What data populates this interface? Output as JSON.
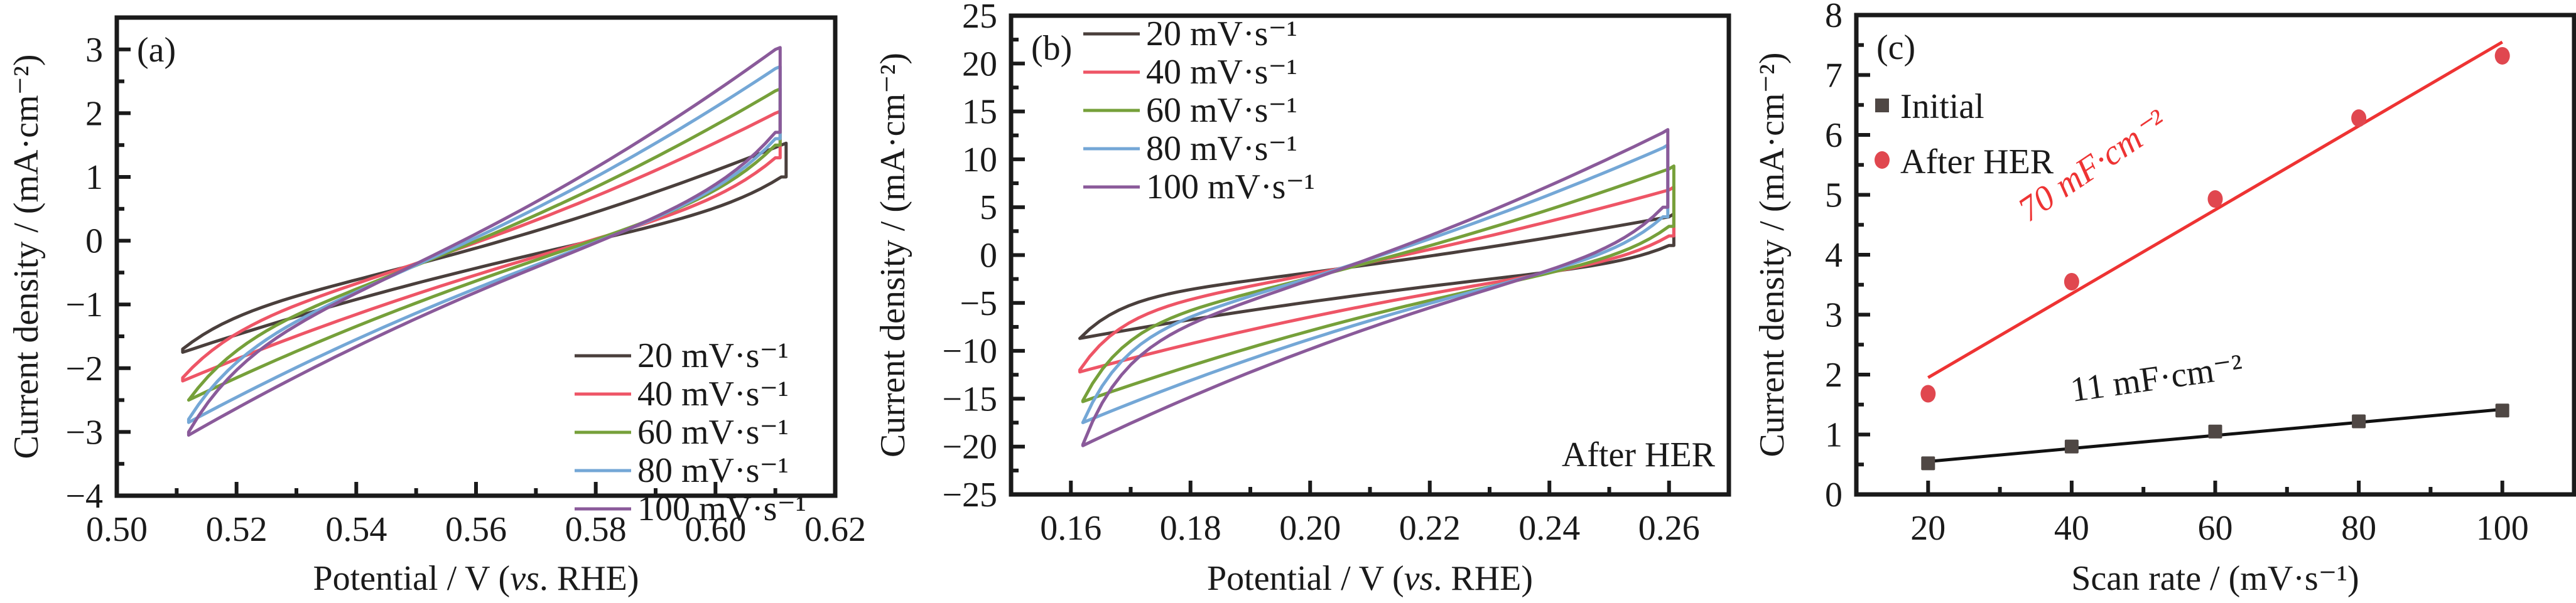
{
  "figure": {
    "colors": {
      "20": "#4a3f3c",
      "40": "#ee5566",
      "60": "#76a03a",
      "80": "#74a7d6",
      "100": "#8a5a9a",
      "initial": "#4f4744",
      "after_her": "#e0474f",
      "fit_red": "#ee3333",
      "fit_black": "#111111",
      "annot_red": "#ee3333"
    }
  },
  "chart_data": [
    {
      "id": "a",
      "type": "line",
      "panel_label": "(a)",
      "title": "",
      "xlabel": "Potential / V (vs. RHE)",
      "xlabel_parts": [
        "Potential / V (",
        "vs",
        ". RHE)"
      ],
      "ylabel": "Current density / (mA·cm⁻²)",
      "xlim": [
        0.5,
        0.62
      ],
      "ylim": [
        -4,
        3.5
      ],
      "xticks": [
        0.5,
        0.52,
        0.54,
        0.56,
        0.58,
        0.6,
        0.62
      ],
      "xtick_labels": [
        "0.50",
        "0.52",
        "0.54",
        "0.56",
        "0.58",
        "0.60",
        "0.62"
      ],
      "yticks": [
        -4,
        -3,
        -2,
        -1,
        0,
        1,
        2,
        3
      ],
      "ytick_labels": [
        "−4",
        "−3",
        "−2",
        "−1",
        "0",
        "1",
        "2",
        "3"
      ],
      "legend_position": "bottom-right",
      "annotation": "",
      "series": [
        {
          "name": "20 mV·s⁻¹",
          "key": "20",
          "x_min": 0.511,
          "x_max": 0.611,
          "upper_left": -1.7,
          "upper_right": 1.5,
          "lower_left": -1.75,
          "lower_right": 1.0,
          "cross_low": -0.6,
          "cross_high": 0.15
        },
        {
          "name": "40 mV·s⁻¹",
          "key": "40",
          "x_min": 0.511,
          "x_max": 0.61,
          "upper_left": -2.15,
          "upper_right": 2.0,
          "lower_left": -2.2,
          "lower_right": 1.3,
          "cross_low": -0.6,
          "cross_high": 0.15
        },
        {
          "name": "60 mV·s⁻¹",
          "key": "60",
          "x_min": 0.512,
          "x_max": 0.61,
          "upper_left": -2.5,
          "upper_right": 2.35,
          "lower_left": -2.5,
          "lower_right": 1.5,
          "cross_low": -0.6,
          "cross_high": 0.15
        },
        {
          "name": "80 mV·s⁻¹",
          "key": "80",
          "x_min": 0.512,
          "x_max": 0.61,
          "upper_left": -2.8,
          "upper_right": 2.7,
          "lower_left": -2.85,
          "lower_right": 1.6,
          "cross_low": -0.6,
          "cross_high": 0.15
        },
        {
          "name": "100 mV·s⁻¹",
          "key": "100",
          "x_min": 0.512,
          "x_max": 0.61,
          "upper_left": -3.0,
          "upper_right": 3.0,
          "lower_left": -3.05,
          "lower_right": 1.7,
          "cross_low": -0.6,
          "cross_high": 0.15
        }
      ]
    },
    {
      "id": "b",
      "type": "line",
      "panel_label": "(b)",
      "title": "",
      "xlabel": "Potential / V (vs. RHE)",
      "xlabel_parts": [
        "Potential / V (",
        "vs",
        ". RHE)"
      ],
      "ylabel": "Current density / (mA·cm⁻²)",
      "xlim": [
        0.15,
        0.27
      ],
      "ylim": [
        -25,
        25
      ],
      "xticks": [
        0.16,
        0.18,
        0.2,
        0.22,
        0.24,
        0.26
      ],
      "xtick_labels": [
        "0.16",
        "0.18",
        "0.20",
        "0.22",
        "0.24",
        "0.26"
      ],
      "yticks": [
        -25,
        -20,
        -15,
        -10,
        -5,
        0,
        5,
        10,
        15,
        20,
        25
      ],
      "ytick_labels": [
        "−25",
        "−20",
        "−15",
        "−10",
        "−5",
        "0",
        "5",
        "10",
        "15",
        "20",
        "25"
      ],
      "legend_position": "top-left",
      "annotation": "After HER",
      "series": [
        {
          "name": "20 mV·s⁻¹",
          "key": "20",
          "x_min": 0.1615,
          "x_max": 0.26,
          "upper_left": -8.7,
          "upper_right": 4.0,
          "lower_left": -8.7,
          "lower_right": 1.0,
          "cross_low": -1.0,
          "cross_high": -2.0
        },
        {
          "name": "40 mV·s⁻¹",
          "key": "40",
          "x_min": 0.1615,
          "x_max": 0.26,
          "upper_left": -12.0,
          "upper_right": 6.8,
          "lower_left": -12.2,
          "lower_right": 2.0,
          "cross_low": -1.0,
          "cross_high": -2.0
        },
        {
          "name": "60 mV·s⁻¹",
          "key": "60",
          "x_min": 0.162,
          "x_max": 0.26,
          "upper_left": -15.2,
          "upper_right": 9.0,
          "lower_left": -15.3,
          "lower_right": 3.0,
          "cross_low": -1.0,
          "cross_high": -2.0
        },
        {
          "name": "80 mV·s⁻¹",
          "key": "80",
          "x_min": 0.162,
          "x_max": 0.259,
          "upper_left": -17.5,
          "upper_right": 11.2,
          "lower_left": -17.5,
          "lower_right": 4.0,
          "cross_low": -1.0,
          "cross_high": -2.0
        },
        {
          "name": "100 mV·s⁻¹",
          "key": "100",
          "x_min": 0.162,
          "x_max": 0.259,
          "upper_left": -19.8,
          "upper_right": 12.8,
          "lower_left": -19.9,
          "lower_right": 5.0,
          "cross_low": -1.0,
          "cross_high": -2.0
        }
      ]
    },
    {
      "id": "c",
      "type": "scatter",
      "panel_label": "(c)",
      "title": "",
      "xlabel": "Scan rate / (mV·s⁻¹)",
      "ylabel": "Current density / (mA·cm⁻²)",
      "xlim": [
        10,
        110
      ],
      "ylim": [
        0,
        8
      ],
      "xticks": [
        20,
        40,
        60,
        80,
        100
      ],
      "xtick_labels": [
        "20",
        "40",
        "60",
        "80",
        "100"
      ],
      "xminor": [
        30,
        50,
        70,
        90
      ],
      "yticks": [
        0,
        1,
        2,
        3,
        4,
        5,
        6,
        7,
        8
      ],
      "ytick_labels": [
        "0",
        "1",
        "2",
        "3",
        "4",
        "5",
        "6",
        "7",
        "8"
      ],
      "legend_position": "top-left",
      "x": [
        20,
        40,
        60,
        80,
        100
      ],
      "series": [
        {
          "name": "Initial",
          "key": "initial",
          "marker": "square",
          "values": [
            0.52,
            0.8,
            1.05,
            1.22,
            1.4
          ],
          "fit": {
            "x": [
              20,
              100
            ],
            "y": [
              0.55,
              1.42
            ],
            "label": "11 mF·cm⁻²",
            "color_key": "fit_black"
          }
        },
        {
          "name": "After HER",
          "key": "after_her",
          "marker": "circle",
          "values": [
            1.68,
            3.55,
            4.93,
            6.28,
            7.32
          ],
          "fit": {
            "x": [
              20,
              100
            ],
            "y": [
              1.95,
              7.55
            ],
            "label": "70 mF·cm⁻²",
            "color_key": "fit_red"
          }
        }
      ]
    }
  ]
}
